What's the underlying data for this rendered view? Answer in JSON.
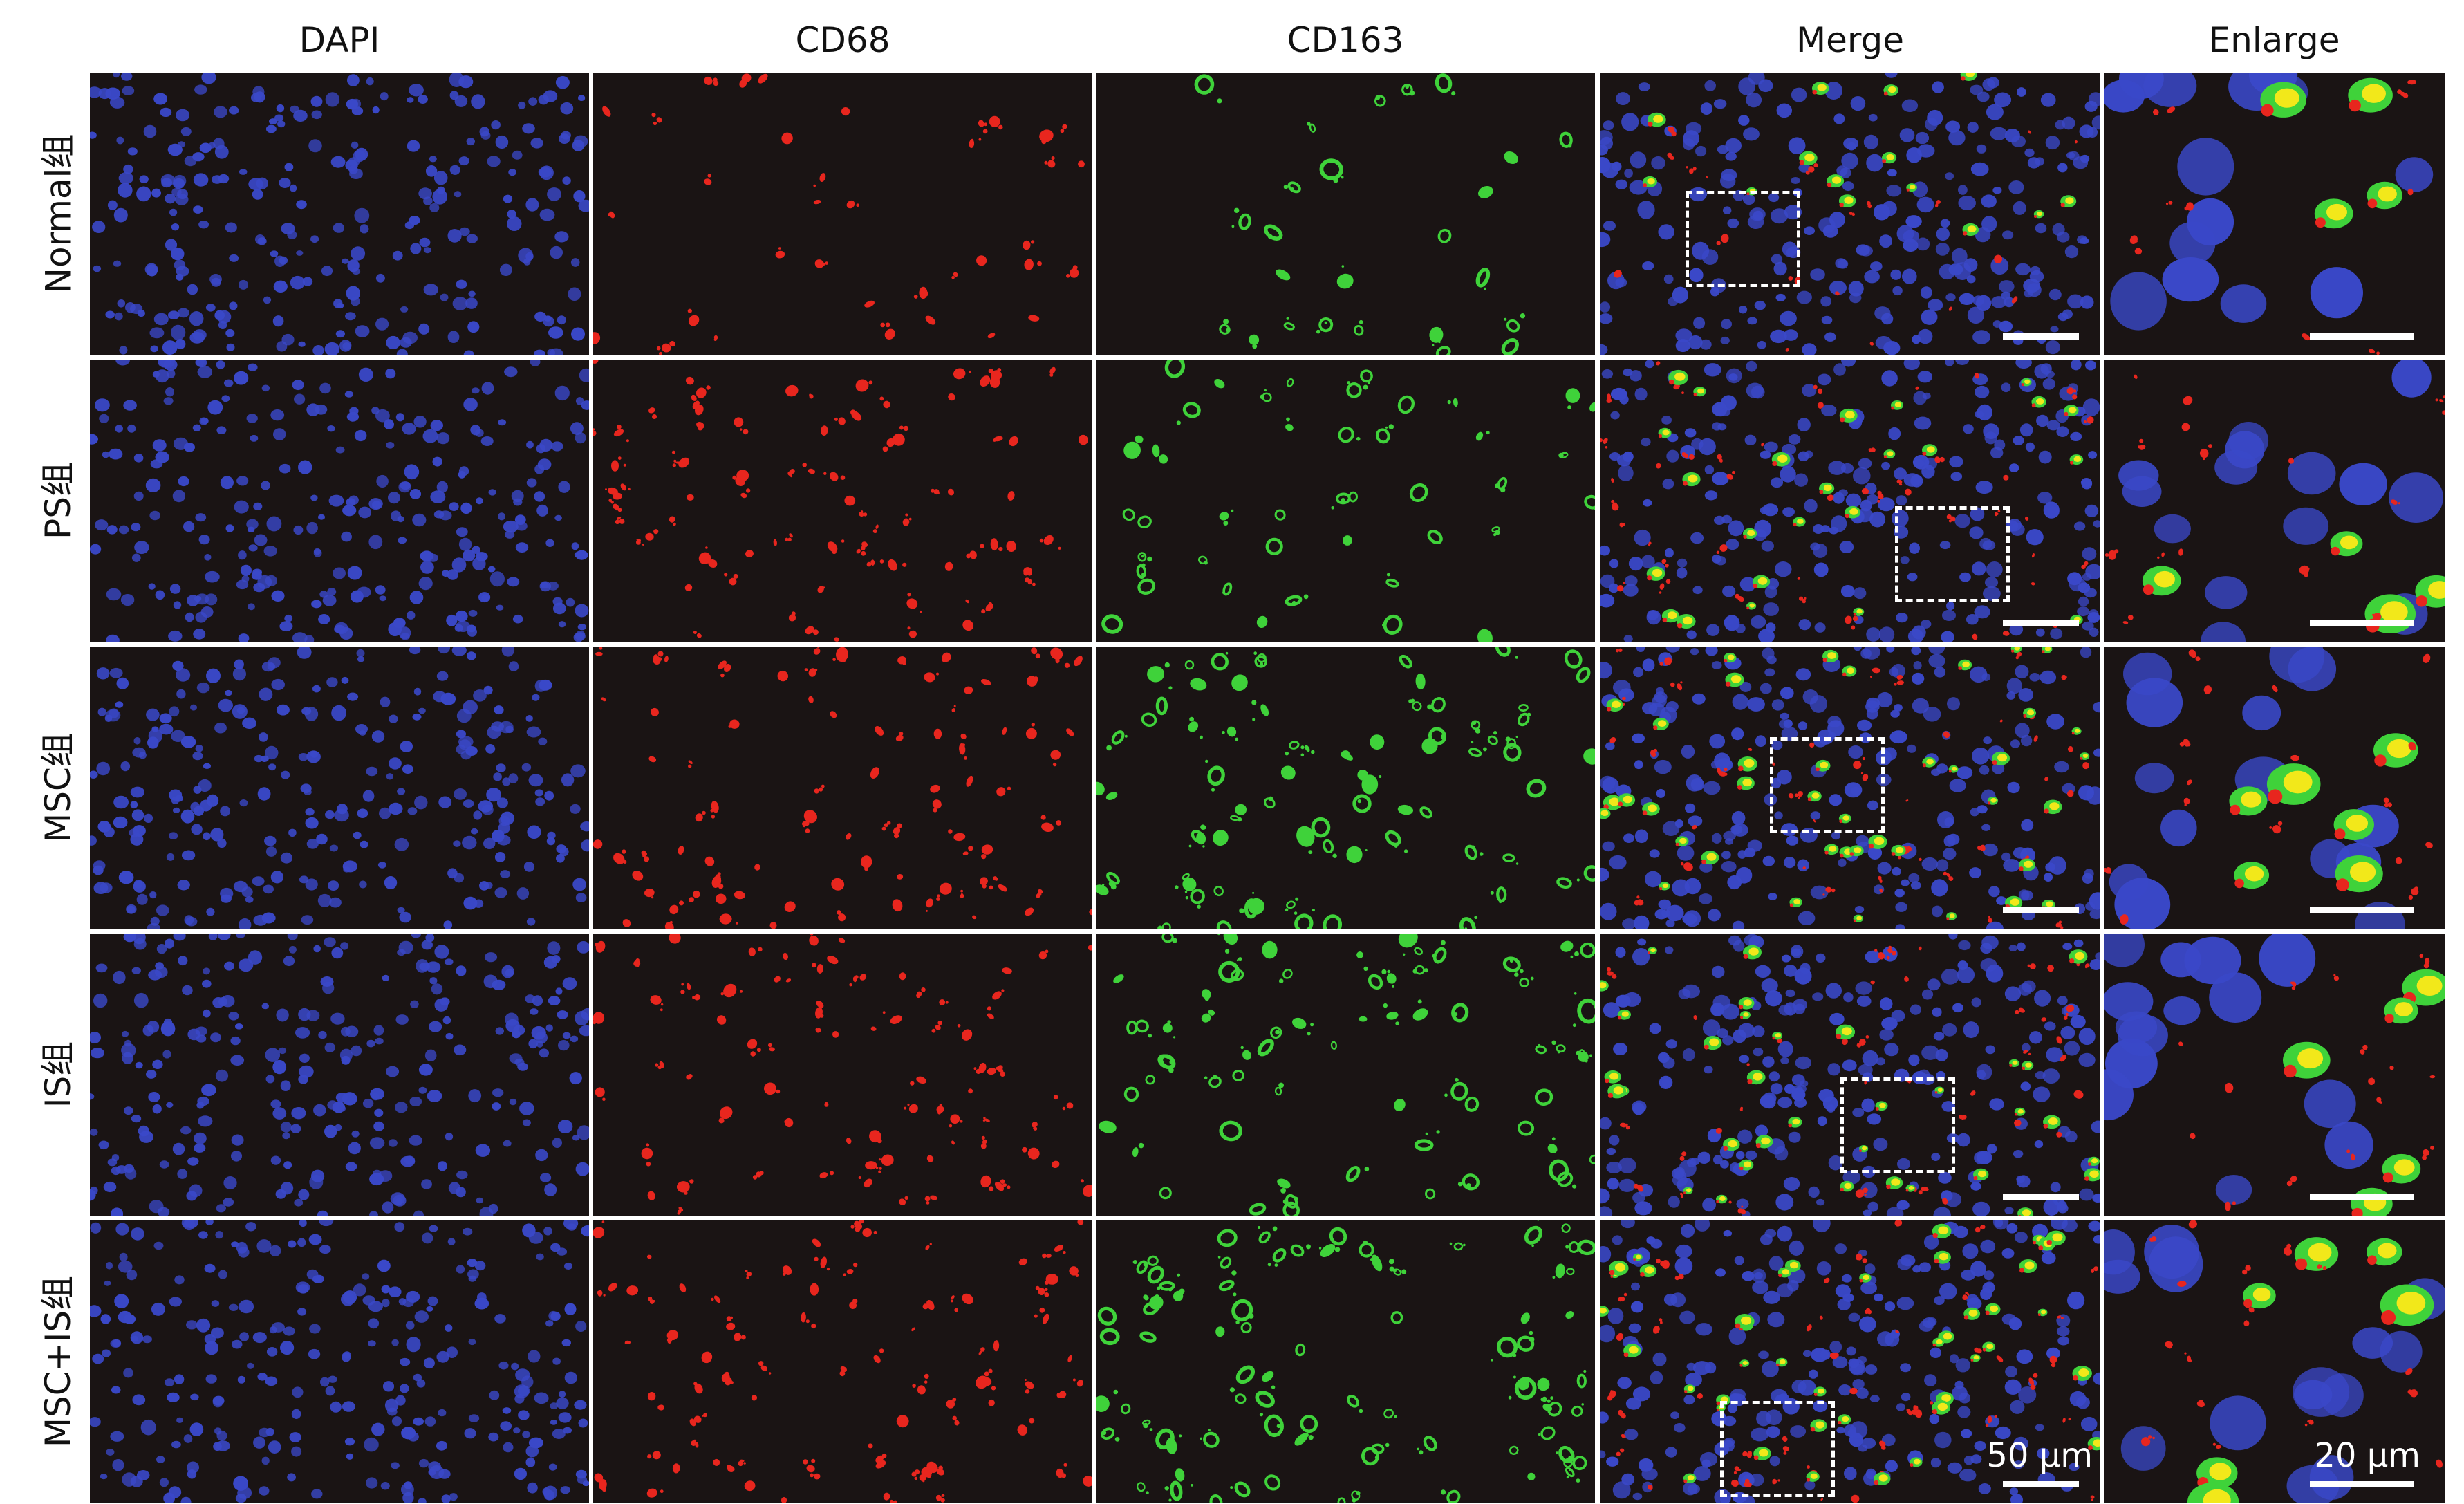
{
  "figure": {
    "columns": [
      {
        "key": "dapi",
        "label": "DAPI"
      },
      {
        "key": "cd68",
        "label": "CD68"
      },
      {
        "key": "cd163",
        "label": "CD163"
      },
      {
        "key": "merge",
        "label": "Merge"
      },
      {
        "key": "enlarge",
        "label": "Enlarge"
      }
    ],
    "rows": [
      {
        "key": "normal",
        "label": "Normal组",
        "cd68_density": 0.25,
        "cd163_density": 0.18
      },
      {
        "key": "ps",
        "label": "PS组",
        "cd68_density": 0.75,
        "cd163_density": 0.45
      },
      {
        "key": "msc",
        "label": "MSC组",
        "cd68_density": 0.8,
        "cd163_density": 0.9
      },
      {
        "key": "is",
        "label": "IS组",
        "cd68_density": 0.7,
        "cd163_density": 0.75
      },
      {
        "key": "msc_is",
        "label": "MSC+IS组",
        "cd68_density": 0.85,
        "cd163_density": 0.95
      }
    ],
    "scale_bars": {
      "merge": "50 μm",
      "enlarge": "20 μm"
    },
    "colors": {
      "background": "#1a1414",
      "dapi": "#3a48c8",
      "cd68": "#e8261e",
      "cd163": "#3fd23a",
      "colocalized": "#f2e81a",
      "annotation": "#ffffff"
    }
  }
}
